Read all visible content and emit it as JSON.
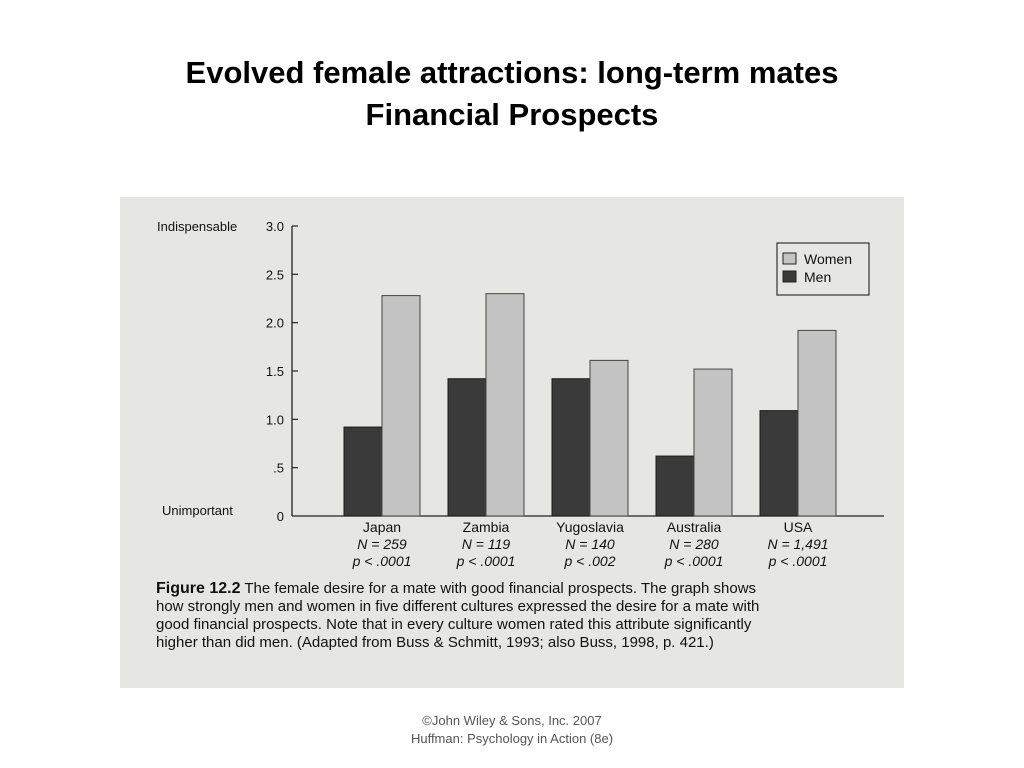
{
  "slide": {
    "title_line1": "Evolved female attractions: long-term mates",
    "title_line2": "Financial Prospects"
  },
  "chart_data": {
    "type": "bar",
    "categories": [
      "Japan",
      "Zambia",
      "Yugoslavia",
      "Australia",
      "USA"
    ],
    "category_notes": [
      {
        "n": "N = 259",
        "p": "p < .0001"
      },
      {
        "n": "N = 119",
        "p": "p < .0001"
      },
      {
        "n": "N = 140",
        "p": "p < .002"
      },
      {
        "n": "N = 280",
        "p": "p < .0001"
      },
      {
        "n": "N = 1,491",
        "p": "p < .0001"
      }
    ],
    "series": [
      {
        "name": "Men",
        "color": "#3a3a3a",
        "values": [
          0.92,
          1.42,
          1.42,
          0.62,
          1.09
        ]
      },
      {
        "name": "Women",
        "color": "#c4c4c4",
        "values": [
          2.28,
          2.3,
          1.61,
          1.52,
          1.92
        ]
      }
    ],
    "legend_order": [
      "Women",
      "Men"
    ],
    "yticks": [
      {
        "value": 3.0,
        "label": "3.0"
      },
      {
        "value": 2.5,
        "label": "2.5"
      },
      {
        "value": 2.0,
        "label": "2.0"
      },
      {
        "value": 1.5,
        "label": "1.5"
      },
      {
        "value": 1.0,
        "label": "1.0"
      },
      {
        "value": 0.5,
        "label": ".5"
      },
      {
        "value": 0,
        "label": "0"
      }
    ],
    "ylim": [
      0,
      3.0
    ],
    "y_top_label": "Indispensable",
    "y_bottom_label": "Unimportant",
    "legend_position": "top-right",
    "grid": false
  },
  "caption": {
    "figure_label": "Figure 12.2",
    "line1": "The female desire for a mate with good financial prospects. The graph shows",
    "line2": "how strongly men and women in five different cultures expressed the desire for a mate with",
    "line3": "good financial prospects. Note that in every culture women rated this attribute significantly",
    "line4": "higher than did men. (Adapted from Buss & Schmitt, 1993; also Buss, 1998, p. 421.)"
  },
  "footer": {
    "line1": "©John Wiley & Sons, Inc. 2007",
    "line2": "Huffman: Psychology in Action (8e)"
  }
}
